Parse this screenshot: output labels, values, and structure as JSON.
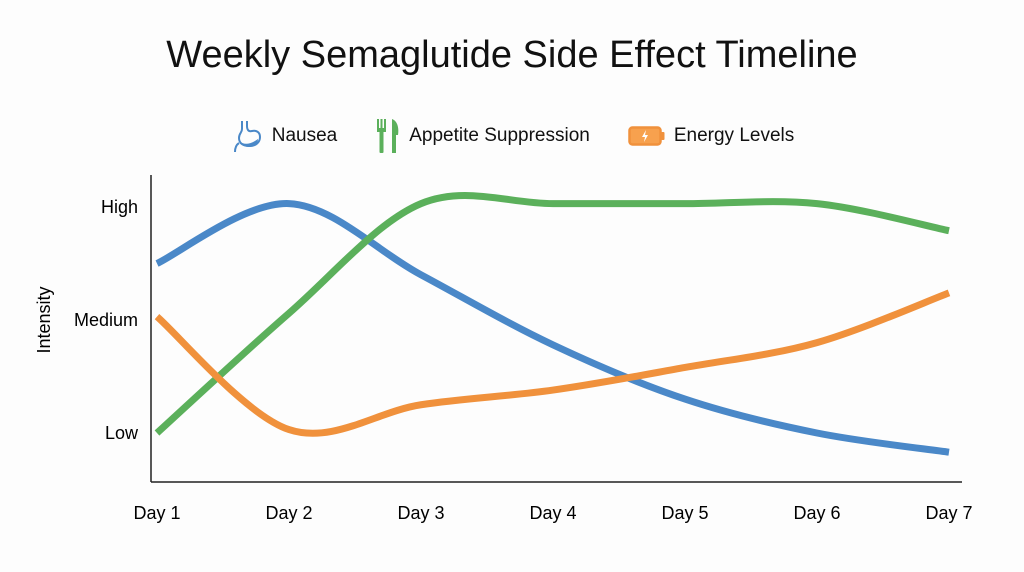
{
  "chart_data": {
    "type": "line",
    "title": "Weekly Semaglutide Side Effect Timeline",
    "xlabel": "",
    "ylabel": "Intensity",
    "categories": [
      "Day 1",
      "Day 2",
      "Day 3",
      "Day 4",
      "Day 5",
      "Day 6",
      "Day 7"
    ],
    "y_ticks": [
      {
        "value": 1,
        "label": "Low"
      },
      {
        "value": 2,
        "label": "Medium"
      },
      {
        "value": 3,
        "label": "High"
      }
    ],
    "ylim": [
      0.55,
      3.3
    ],
    "grid": false,
    "legend_position": "top",
    "series": [
      {
        "name": "Nausea",
        "icon": "stomach-icon",
        "color": "#4a88c8",
        "values": [
          2.5,
          3.03,
          2.4,
          1.78,
          1.3,
          1.0,
          0.83
        ]
      },
      {
        "name": "Appetite Suppression",
        "icon": "fork-knife-icon",
        "color": "#5bb05b",
        "values": [
          1.0,
          2.06,
          3.03,
          3.03,
          3.03,
          3.03,
          2.79
        ]
      },
      {
        "name": "Energy Levels",
        "icon": "battery-icon",
        "color": "#f0913c",
        "values": [
          2.03,
          1.03,
          1.25,
          1.38,
          1.58,
          1.8,
          2.24
        ]
      }
    ]
  }
}
